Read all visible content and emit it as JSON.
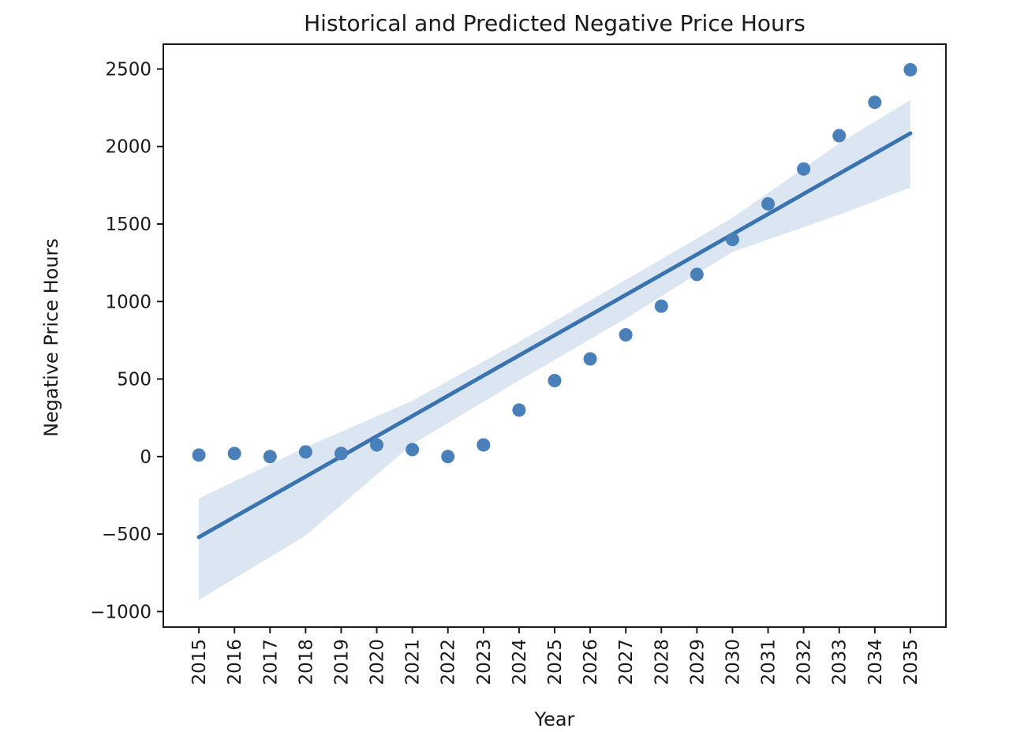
{
  "chart_data": {
    "type": "scatter",
    "title": "Historical and Predicted Negative Price Hours",
    "xlabel": "Year",
    "ylabel": "Negative Price Hours",
    "x": [
      2015,
      2016,
      2017,
      2018,
      2019,
      2020,
      2021,
      2022,
      2023,
      2024,
      2025,
      2026,
      2027,
      2028,
      2029,
      2030,
      2031,
      2032,
      2033,
      2034,
      2035
    ],
    "x_tick_labels": [
      "2015",
      "2016",
      "2017",
      "2018",
      "2019",
      "2020",
      "2021",
      "2022",
      "2023",
      "2024",
      "2025",
      "2026",
      "2027",
      "2028",
      "2029",
      "2030",
      "2031",
      "2032",
      "2033",
      "2034",
      "2035"
    ],
    "y": [
      10,
      20,
      0,
      30,
      20,
      75,
      45,
      0,
      75,
      300,
      490,
      630,
      785,
      970,
      1175,
      1400,
      1630,
      1855,
      2070,
      2285,
      2495
    ],
    "y_ticks": [
      -1000,
      -500,
      0,
      500,
      1000,
      1500,
      2000,
      2500
    ],
    "y_tick_labels": [
      "−1000",
      "−500",
      "0",
      "500",
      "1000",
      "1500",
      "2000",
      "2500"
    ],
    "xlim": [
      2014,
      2036
    ],
    "ylim": [
      -1100,
      2660
    ],
    "regression": {
      "start": {
        "x": 2015,
        "y": -520
      },
      "end": {
        "x": 2035,
        "y": 2085
      }
    },
    "confidence_band": [
      {
        "x": 2015,
        "lower": -925,
        "upper": -270
      },
      {
        "x": 2018,
        "lower": -510,
        "upper": 60
      },
      {
        "x": 2021,
        "lower": 80,
        "upper": 360
      },
      {
        "x": 2024,
        "lower": 490,
        "upper": 740
      },
      {
        "x": 2027,
        "lower": 890,
        "upper": 1140
      },
      {
        "x": 2030,
        "lower": 1320,
        "upper": 1540
      },
      {
        "x": 2033,
        "lower": 1560,
        "upper": 2020
      },
      {
        "x": 2035,
        "lower": 1735,
        "upper": 2300
      }
    ],
    "grid": false,
    "colors": {
      "points": "#4a80b9",
      "line": "#3a74b0",
      "band": "#dbe6f2",
      "axes": "#1a1a1a"
    }
  }
}
